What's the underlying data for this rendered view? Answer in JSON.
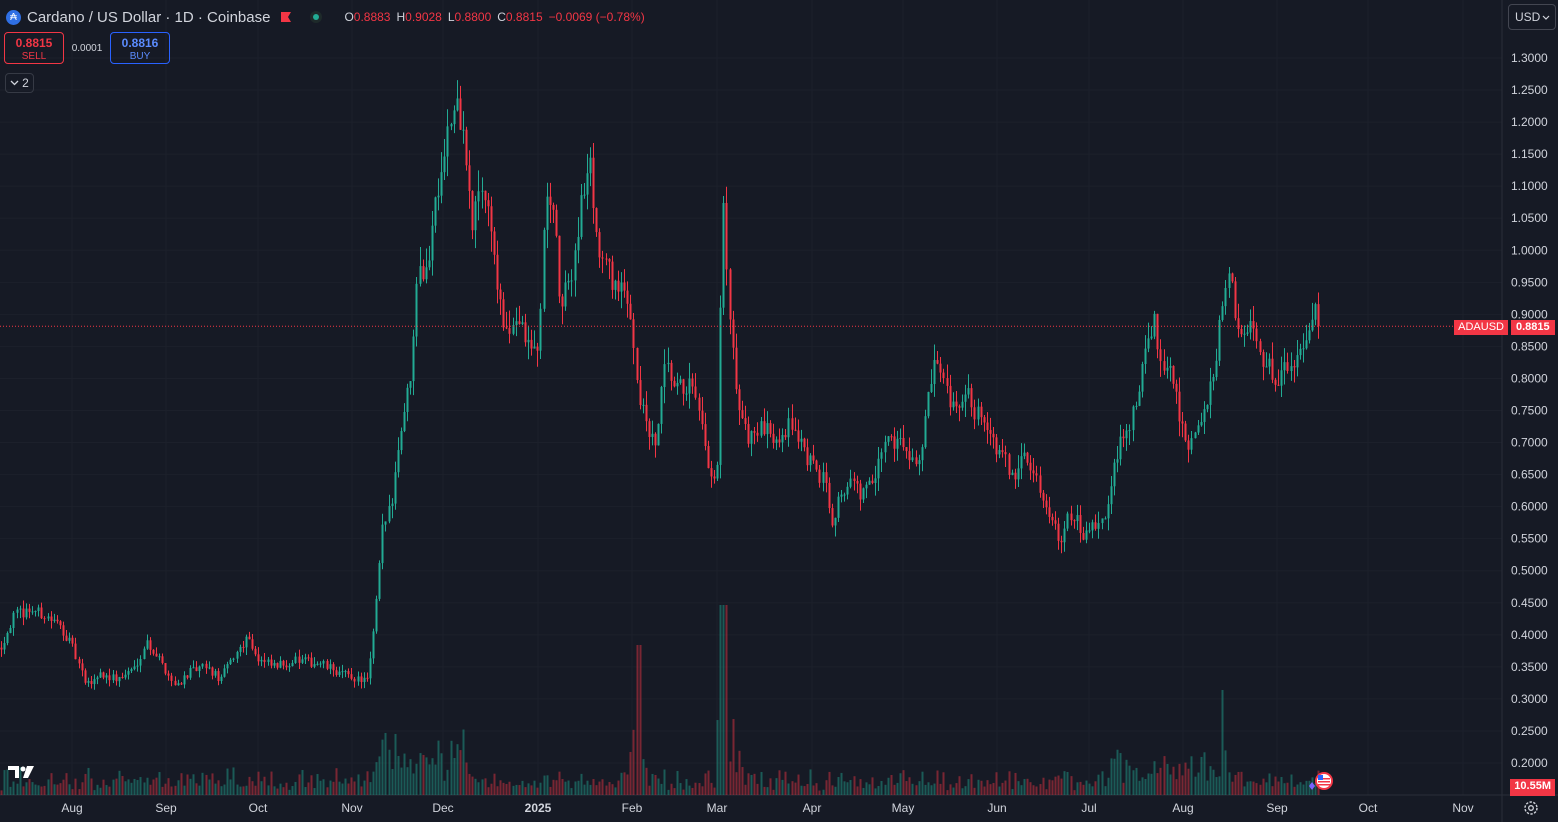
{
  "header": {
    "symbol_icon": "cardano-icon",
    "title": "Cardano / US Dollar · 1D · Coinbase",
    "ohlc": {
      "o_label": "O",
      "o": "0.8883",
      "h_label": "H",
      "h": "0.9028",
      "l_label": "L",
      "l": "0.8800",
      "c_label": "C",
      "c": "0.8815",
      "change": "−0.0069 (−0.78%)"
    }
  },
  "trade": {
    "sell_price": "0.8815",
    "sell_label": "SELL",
    "spread": "0.0001",
    "buy_price": "0.8816",
    "buy_label": "BUY"
  },
  "indicators_toggle": "2",
  "currency": "USD",
  "price_tag": {
    "symbol": "ADAUSD",
    "value": "0.8815"
  },
  "volume_tag": "10.55M",
  "colors": {
    "up": "#22ab94",
    "down": "#f23645",
    "background": "#161a25",
    "grid": "#1e222d"
  },
  "chart_data": {
    "type": "candlestick",
    "symbol": "ADAUSD",
    "interval": "1D",
    "exchange": "Coinbase",
    "x_labels": [
      "Aug",
      "Sep",
      "Oct",
      "Nov",
      "Dec",
      "2025",
      "Feb",
      "Mar",
      "Apr",
      "May",
      "Jun",
      "Jul",
      "Aug",
      "Sep",
      "Oct",
      "Nov"
    ],
    "y_ticks": [
      "1.3000",
      "1.2500",
      "1.2000",
      "1.1500",
      "1.1000",
      "1.0500",
      "1.0000",
      "0.9500",
      "0.9000",
      "0.8500",
      "0.8000",
      "0.7500",
      "0.7000",
      "0.6500",
      "0.6000",
      "0.5500",
      "0.5000",
      "0.4500",
      "0.4000",
      "0.3500",
      "0.3000",
      "0.2500",
      "0.2000"
    ],
    "ylim": [
      0.155,
      1.355
    ],
    "last_price": 0.8815,
    "monthly_closes": [
      [
        "2024-07-15",
        0.4
      ],
      [
        "2024-08-01",
        0.35
      ],
      [
        "2024-08-15",
        0.34
      ],
      [
        "2024-09-01",
        0.33
      ],
      [
        "2024-09-15",
        0.35
      ],
      [
        "2024-10-01",
        0.37
      ],
      [
        "2024-10-15",
        0.35
      ],
      [
        "2024-11-01",
        0.33
      ],
      [
        "2024-11-10",
        0.5
      ],
      [
        "2024-11-20",
        0.8
      ],
      [
        "2024-12-01",
        1.05
      ],
      [
        "2024-12-03",
        1.2
      ],
      [
        "2024-12-15",
        1.05
      ],
      [
        "2025-01-01",
        0.85
      ],
      [
        "2025-01-15",
        1.05
      ],
      [
        "2025-01-20",
        1.1
      ],
      [
        "2025-02-01",
        0.95
      ],
      [
        "2025-02-10",
        0.75
      ],
      [
        "2025-02-25",
        0.65
      ],
      [
        "2025-03-02",
        1.1
      ],
      [
        "2025-03-15",
        0.72
      ],
      [
        "2025-04-01",
        0.66
      ],
      [
        "2025-04-10",
        0.58
      ],
      [
        "2025-05-01",
        0.7
      ],
      [
        "2025-05-12",
        0.8
      ],
      [
        "2025-06-01",
        0.68
      ],
      [
        "2025-06-22",
        0.54
      ],
      [
        "2025-07-10",
        0.62
      ],
      [
        "2025-07-22",
        0.88
      ],
      [
        "2025-08-02",
        0.72
      ],
      [
        "2025-08-14",
        0.95
      ],
      [
        "2025-09-01",
        0.82
      ],
      [
        "2025-09-15",
        0.88
      ]
    ],
    "volume": {
      "last": "10.55M"
    }
  }
}
